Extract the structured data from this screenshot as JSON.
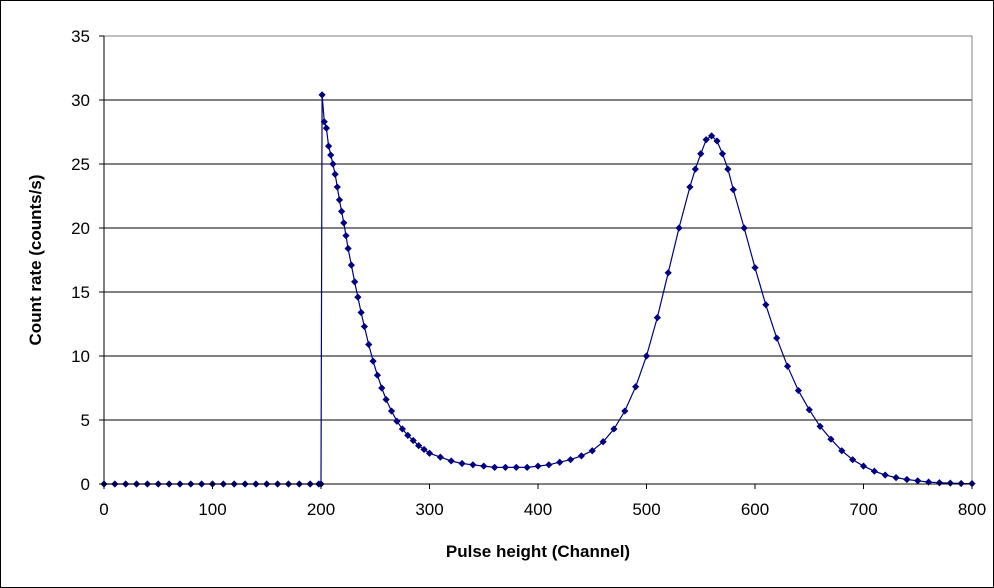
{
  "chart_data": {
    "type": "scatter",
    "title": "",
    "xlabel": "Pulse height (Channel)",
    "ylabel": "Count rate  (counts/s)",
    "xlim": [
      0,
      800
    ],
    "ylim": [
      0,
      35
    ],
    "x_ticks": [
      "0",
      "100",
      "200",
      "300",
      "400",
      "500",
      "600",
      "700",
      "800"
    ],
    "y_ticks": [
      "0",
      "5",
      "10",
      "15",
      "20",
      "25",
      "30",
      "35"
    ],
    "grid": "horizontal",
    "legend": "none",
    "marker": "diamond",
    "connected": true,
    "series": [
      {
        "color": "#000080",
        "points": [
          [
            0,
            0
          ],
          [
            10,
            0
          ],
          [
            20,
            0
          ],
          [
            30,
            0
          ],
          [
            40,
            0
          ],
          [
            50,
            0
          ],
          [
            60,
            0
          ],
          [
            70,
            0
          ],
          [
            80,
            0
          ],
          [
            90,
            0
          ],
          [
            100,
            0
          ],
          [
            110,
            0
          ],
          [
            120,
            0
          ],
          [
            130,
            0
          ],
          [
            140,
            0
          ],
          [
            150,
            0
          ],
          [
            160,
            0
          ],
          [
            170,
            0
          ],
          [
            180,
            0
          ],
          [
            190,
            0
          ],
          [
            198,
            0
          ],
          [
            200,
            0
          ],
          [
            201,
            30.4
          ],
          [
            203,
            28.3
          ],
          [
            205,
            27.8
          ],
          [
            207,
            26.4
          ],
          [
            209,
            25.7
          ],
          [
            211,
            25.0
          ],
          [
            213,
            24.2
          ],
          [
            215,
            23.2
          ],
          [
            217,
            22.2
          ],
          [
            219,
            21.3
          ],
          [
            221,
            20.4
          ],
          [
            223,
            19.4
          ],
          [
            225,
            18.4
          ],
          [
            228,
            17.1
          ],
          [
            231,
            15.8
          ],
          [
            234,
            14.6
          ],
          [
            237,
            13.4
          ],
          [
            240,
            12.3
          ],
          [
            244,
            10.9
          ],
          [
            248,
            9.6
          ],
          [
            252,
            8.5
          ],
          [
            256,
            7.5
          ],
          [
            260,
            6.6
          ],
          [
            265,
            5.7
          ],
          [
            270,
            4.9
          ],
          [
            275,
            4.3
          ],
          [
            280,
            3.8
          ],
          [
            285,
            3.4
          ],
          [
            290,
            3.0
          ],
          [
            295,
            2.7
          ],
          [
            300,
            2.4
          ],
          [
            310,
            2.1
          ],
          [
            320,
            1.8
          ],
          [
            330,
            1.6
          ],
          [
            340,
            1.5
          ],
          [
            350,
            1.4
          ],
          [
            360,
            1.3
          ],
          [
            370,
            1.3
          ],
          [
            380,
            1.3
          ],
          [
            390,
            1.3
          ],
          [
            400,
            1.4
          ],
          [
            410,
            1.5
          ],
          [
            420,
            1.7
          ],
          [
            430,
            1.9
          ],
          [
            440,
            2.2
          ],
          [
            450,
            2.6
          ],
          [
            460,
            3.3
          ],
          [
            470,
            4.3
          ],
          [
            480,
            5.7
          ],
          [
            490,
            7.6
          ],
          [
            500,
            10.0
          ],
          [
            510,
            13.0
          ],
          [
            520,
            16.5
          ],
          [
            530,
            20.0
          ],
          [
            540,
            23.2
          ],
          [
            545,
            24.6
          ],
          [
            550,
            25.8
          ],
          [
            555,
            26.9
          ],
          [
            560,
            27.2
          ],
          [
            565,
            26.8
          ],
          [
            570,
            25.8
          ],
          [
            575,
            24.6
          ],
          [
            580,
            23.0
          ],
          [
            590,
            20.0
          ],
          [
            600,
            16.9
          ],
          [
            610,
            14.0
          ],
          [
            620,
            11.4
          ],
          [
            630,
            9.2
          ],
          [
            640,
            7.3
          ],
          [
            650,
            5.8
          ],
          [
            660,
            4.5
          ],
          [
            670,
            3.5
          ],
          [
            680,
            2.6
          ],
          [
            690,
            1.9
          ],
          [
            700,
            1.4
          ],
          [
            710,
            1.0
          ],
          [
            720,
            0.7
          ],
          [
            730,
            0.5
          ],
          [
            740,
            0.35
          ],
          [
            750,
            0.25
          ],
          [
            760,
            0.15
          ],
          [
            770,
            0.1
          ],
          [
            780,
            0.07
          ],
          [
            790,
            0.04
          ],
          [
            800,
            0.03
          ]
        ]
      }
    ]
  }
}
